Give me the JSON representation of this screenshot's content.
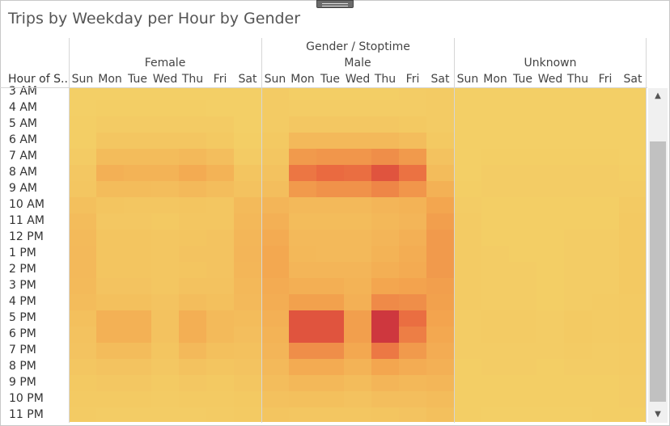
{
  "title": "Trips by Weekday per Hour by Gender",
  "header": {
    "super": "Gender / Stoptime",
    "row_field": "Hour of S..",
    "groups": [
      "Female",
      "Male",
      "Unknown"
    ],
    "days": [
      "Sun",
      "Mon",
      "Tue",
      "Wed",
      "Thu",
      "Fri",
      "Sat"
    ]
  },
  "hours": [
    "3 AM",
    "4 AM",
    "5 AM",
    "6 AM",
    "7 AM",
    "8 AM",
    "9 AM",
    "10 AM",
    "11 AM",
    "12 PM",
    "1 PM",
    "2 PM",
    "3 PM",
    "4 PM",
    "5 PM",
    "6 PM",
    "7 PM",
    "8 PM",
    "9 PM",
    "10 PM",
    "11 PM"
  ],
  "chart_data": {
    "type": "heatmap",
    "title": "Trips by Weekday per Hour by Gender",
    "columns_label": "Gender / Stoptime",
    "rows_label": "Hour of S..",
    "color_scale": [
      "#f3cf66",
      "#f3a44e",
      "#e8603e",
      "#b8163e"
    ],
    "note": "values are relative trip intensity (0 = lowest, 1 = highest) read from color",
    "groups": [
      {
        "name": "Female",
        "values": [
          [
            0.0,
            0.0,
            0.0,
            0.0,
            0.0,
            0.0,
            0.0
          ],
          [
            0.0,
            0.01,
            0.01,
            0.01,
            0.01,
            0.0,
            0.0
          ],
          [
            0.01,
            0.03,
            0.03,
            0.03,
            0.03,
            0.03,
            0.0
          ],
          [
            0.01,
            0.07,
            0.07,
            0.07,
            0.07,
            0.05,
            0.01
          ],
          [
            0.03,
            0.15,
            0.15,
            0.15,
            0.17,
            0.13,
            0.03
          ],
          [
            0.06,
            0.24,
            0.22,
            0.22,
            0.28,
            0.22,
            0.08
          ],
          [
            0.07,
            0.15,
            0.15,
            0.14,
            0.17,
            0.14,
            0.1
          ],
          [
            0.12,
            0.08,
            0.07,
            0.07,
            0.08,
            0.07,
            0.16
          ],
          [
            0.15,
            0.06,
            0.06,
            0.05,
            0.07,
            0.07,
            0.18
          ],
          [
            0.16,
            0.08,
            0.08,
            0.07,
            0.08,
            0.09,
            0.19
          ],
          [
            0.17,
            0.08,
            0.08,
            0.07,
            0.09,
            0.09,
            0.2
          ],
          [
            0.17,
            0.08,
            0.08,
            0.07,
            0.08,
            0.09,
            0.19
          ],
          [
            0.16,
            0.09,
            0.09,
            0.07,
            0.1,
            0.1,
            0.18
          ],
          [
            0.15,
            0.12,
            0.12,
            0.09,
            0.14,
            0.12,
            0.17
          ],
          [
            0.12,
            0.23,
            0.23,
            0.1,
            0.25,
            0.16,
            0.15
          ],
          [
            0.1,
            0.23,
            0.23,
            0.1,
            0.25,
            0.16,
            0.13
          ],
          [
            0.09,
            0.15,
            0.15,
            0.08,
            0.17,
            0.12,
            0.11
          ],
          [
            0.07,
            0.09,
            0.09,
            0.06,
            0.1,
            0.08,
            0.09
          ],
          [
            0.05,
            0.06,
            0.06,
            0.04,
            0.06,
            0.05,
            0.07
          ],
          [
            0.04,
            0.04,
            0.04,
            0.03,
            0.04,
            0.04,
            0.05
          ],
          [
            0.03,
            0.02,
            0.02,
            0.02,
            0.02,
            0.03,
            0.04
          ]
        ]
      },
      {
        "name": "Male",
        "values": [
          [
            0.03,
            0.01,
            0.01,
            0.01,
            0.01,
            0.02,
            0.03
          ],
          [
            0.03,
            0.02,
            0.02,
            0.02,
            0.02,
            0.02,
            0.03
          ],
          [
            0.03,
            0.06,
            0.06,
            0.06,
            0.06,
            0.05,
            0.03
          ],
          [
            0.05,
            0.17,
            0.17,
            0.17,
            0.17,
            0.14,
            0.05
          ],
          [
            0.07,
            0.38,
            0.4,
            0.4,
            0.44,
            0.38,
            0.1
          ],
          [
            0.1,
            0.56,
            0.62,
            0.6,
            0.72,
            0.58,
            0.15
          ],
          [
            0.13,
            0.38,
            0.42,
            0.42,
            0.48,
            0.4,
            0.23
          ],
          [
            0.2,
            0.17,
            0.17,
            0.17,
            0.2,
            0.22,
            0.32
          ],
          [
            0.24,
            0.15,
            0.15,
            0.15,
            0.18,
            0.2,
            0.36
          ],
          [
            0.28,
            0.17,
            0.17,
            0.17,
            0.2,
            0.24,
            0.38
          ],
          [
            0.3,
            0.18,
            0.17,
            0.17,
            0.22,
            0.26,
            0.38
          ],
          [
            0.3,
            0.2,
            0.2,
            0.2,
            0.25,
            0.28,
            0.38
          ],
          [
            0.28,
            0.25,
            0.25,
            0.22,
            0.32,
            0.34,
            0.36
          ],
          [
            0.26,
            0.35,
            0.35,
            0.24,
            0.46,
            0.44,
            0.35
          ],
          [
            0.24,
            0.72,
            0.72,
            0.36,
            0.85,
            0.6,
            0.33
          ],
          [
            0.22,
            0.72,
            0.72,
            0.36,
            0.85,
            0.52,
            0.3
          ],
          [
            0.2,
            0.44,
            0.44,
            0.3,
            0.55,
            0.38,
            0.27
          ],
          [
            0.17,
            0.28,
            0.28,
            0.22,
            0.32,
            0.27,
            0.24
          ],
          [
            0.14,
            0.18,
            0.18,
            0.15,
            0.2,
            0.18,
            0.19
          ],
          [
            0.11,
            0.12,
            0.12,
            0.1,
            0.13,
            0.13,
            0.15
          ],
          [
            0.08,
            0.07,
            0.07,
            0.07,
            0.08,
            0.09,
            0.12
          ]
        ]
      },
      {
        "name": "Unknown",
        "values": [
          [
            0.0,
            0.0,
            0.0,
            0.0,
            0.0,
            0.0,
            0.0
          ],
          [
            0.0,
            0.0,
            0.0,
            0.0,
            0.0,
            0.0,
            0.0
          ],
          [
            0.0,
            0.0,
            0.0,
            0.0,
            0.0,
            0.0,
            0.0
          ],
          [
            0.0,
            0.0,
            0.0,
            0.0,
            0.0,
            0.0,
            0.0
          ],
          [
            0.0,
            0.01,
            0.01,
            0.01,
            0.01,
            0.01,
            0.0
          ],
          [
            0.0,
            0.02,
            0.02,
            0.02,
            0.02,
            0.02,
            0.01
          ],
          [
            0.01,
            0.02,
            0.02,
            0.02,
            0.02,
            0.02,
            0.02
          ],
          [
            0.02,
            0.01,
            0.01,
            0.01,
            0.01,
            0.01,
            0.04
          ],
          [
            0.03,
            0.01,
            0.01,
            0.01,
            0.01,
            0.01,
            0.05
          ],
          [
            0.03,
            0.01,
            0.01,
            0.01,
            0.02,
            0.02,
            0.05
          ],
          [
            0.03,
            0.02,
            0.01,
            0.01,
            0.02,
            0.02,
            0.05
          ],
          [
            0.03,
            0.02,
            0.02,
            0.01,
            0.02,
            0.02,
            0.05
          ],
          [
            0.03,
            0.02,
            0.02,
            0.01,
            0.02,
            0.02,
            0.05
          ],
          [
            0.03,
            0.02,
            0.02,
            0.01,
            0.02,
            0.03,
            0.04
          ],
          [
            0.02,
            0.03,
            0.03,
            0.02,
            0.04,
            0.03,
            0.04
          ],
          [
            0.02,
            0.03,
            0.03,
            0.02,
            0.04,
            0.03,
            0.04
          ],
          [
            0.02,
            0.02,
            0.02,
            0.02,
            0.03,
            0.02,
            0.03
          ],
          [
            0.01,
            0.02,
            0.02,
            0.01,
            0.02,
            0.02,
            0.03
          ],
          [
            0.01,
            0.01,
            0.01,
            0.01,
            0.01,
            0.01,
            0.02
          ],
          [
            0.01,
            0.01,
            0.01,
            0.01,
            0.01,
            0.01,
            0.02
          ],
          [
            0.01,
            0.0,
            0.0,
            0.0,
            0.0,
            0.01,
            0.01
          ]
        ]
      }
    ]
  },
  "scrollbar": {
    "up": "▲",
    "down": "▼"
  }
}
